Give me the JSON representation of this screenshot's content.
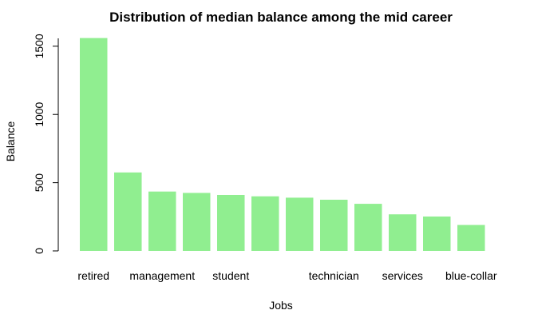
{
  "chart_data": {
    "type": "bar",
    "title": "Distribution of median balance among the mid career",
    "xlabel": "Jobs",
    "ylabel": "Balance",
    "ylim": [
      0,
      1600
    ],
    "yticks": [
      0,
      500,
      1000,
      1500
    ],
    "grid": false,
    "bar_color": "#90ee90",
    "categories": [
      "retired",
      "",
      "management",
      "",
      "student",
      "",
      "",
      "technician",
      "",
      "services",
      "",
      "blue-collar"
    ],
    "values": [
      1560,
      575,
      435,
      425,
      410,
      400,
      390,
      375,
      345,
      268,
      252,
      190
    ]
  }
}
